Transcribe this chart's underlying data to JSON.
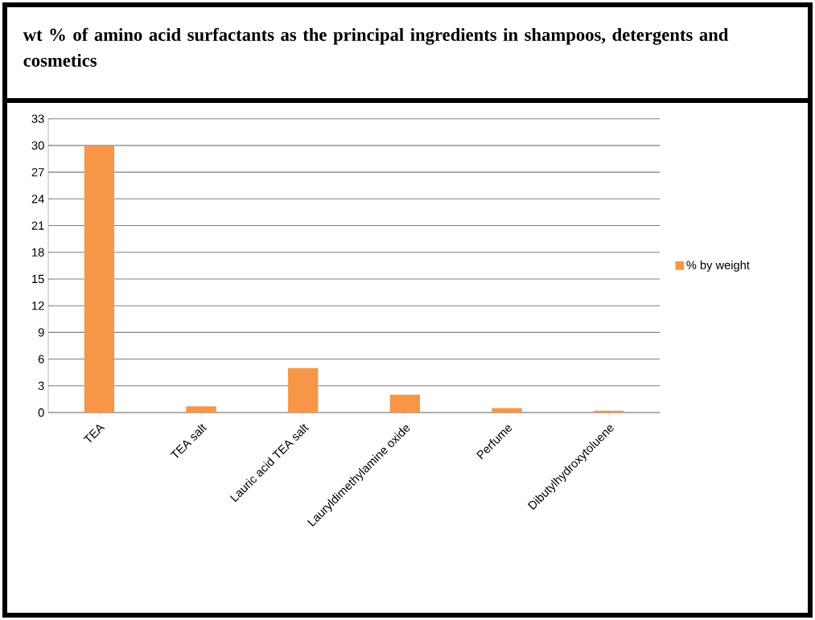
{
  "chart_data": {
    "type": "bar",
    "title": "wt % of amino acid surfactants as the principal ingredients in shampoos, detergents and cosmetics",
    "categories": [
      "TEA",
      "TEA salt",
      "Lauric acid TEA salt",
      "Lauryldimethylamine oxide",
      "Perfume",
      "Dibutylhydroxytoluene"
    ],
    "series": [
      {
        "name": "% by weight",
        "color": "#f79646",
        "values": [
          30,
          0.7,
          5,
          2,
          0.5,
          0.2
        ]
      }
    ],
    "ylim": [
      0,
      33
    ],
    "yticks": [
      0,
      3,
      6,
      9,
      12,
      15,
      18,
      21,
      24,
      27,
      30,
      33
    ],
    "grid": "y",
    "legend": "right"
  }
}
